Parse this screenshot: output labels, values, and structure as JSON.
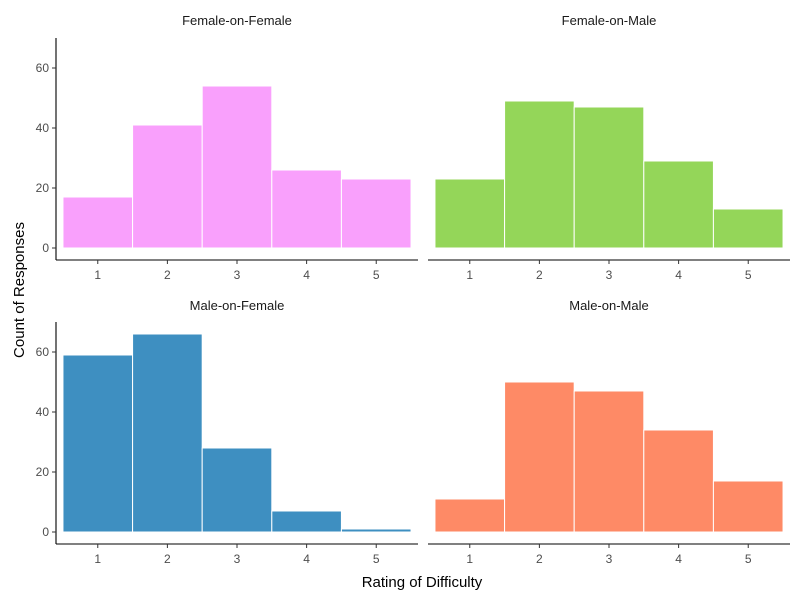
{
  "chart_data": {
    "type": "bar",
    "xlabel": "Rating of Difficulty",
    "ylabel": "Count of Responses",
    "categories": [
      "1",
      "2",
      "3",
      "4",
      "5"
    ],
    "ylim": [
      -4,
      70
    ],
    "yticks": [
      0,
      20,
      40,
      60
    ],
    "grid": false,
    "legend": "none",
    "panels": [
      {
        "title": "Female-on-Female",
        "color": "#F9A0FC",
        "values": [
          17,
          41,
          54,
          26,
          23
        ]
      },
      {
        "title": "Female-on-Male",
        "color": "#94D659",
        "values": [
          23,
          49,
          47,
          29,
          13
        ]
      },
      {
        "title": "Male-on-Female",
        "color": "#3E8FC1",
        "values": [
          59,
          66,
          28,
          7,
          1
        ]
      },
      {
        "title": "Male-on-Male",
        "color": "#FE8A66",
        "values": [
          11,
          50,
          47,
          34,
          17
        ]
      }
    ]
  }
}
